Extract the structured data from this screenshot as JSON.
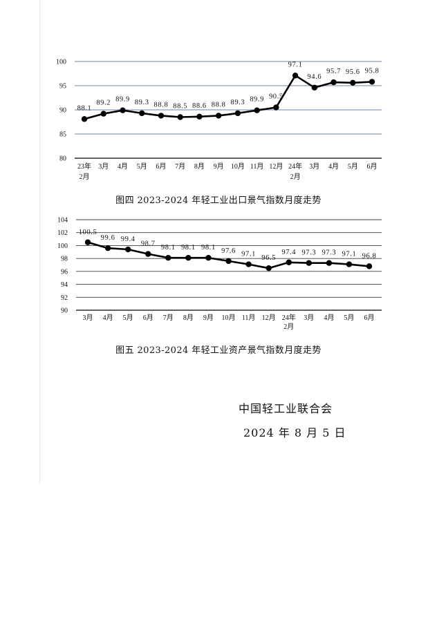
{
  "chart_data": [
    {
      "type": "line",
      "title": "图四 2023-2024 年轻工业出口景气指数月度走势",
      "xlabel": "",
      "ylabel": "",
      "categories": [
        "23年\n2月",
        "3月",
        "4月",
        "5月",
        "6月",
        "7月",
        "8月",
        "9月",
        "10月",
        "11月",
        "12月",
        "24年\n2月",
        "3月",
        "4月",
        "5月",
        "6月"
      ],
      "values": [
        88.1,
        89.2,
        89.9,
        89.3,
        88.8,
        88.5,
        88.6,
        88.8,
        89.3,
        89.9,
        90.5,
        97.1,
        94.6,
        95.7,
        95.6,
        95.8
      ],
      "ylim": [
        80,
        100
      ],
      "yticks": [
        80,
        85,
        90,
        95,
        100
      ],
      "grid": true,
      "data_labels": true,
      "line_color": "#000000",
      "grid_color": "#8a9bb5",
      "axis_color": "#000000"
    },
    {
      "type": "line",
      "title": "图五 2023-2024 年轻工业资产景气指数月度走势",
      "xlabel": "",
      "ylabel": "",
      "categories": [
        "3月",
        "4月",
        "5月",
        "6月",
        "7月",
        "8月",
        "9月",
        "10月",
        "11月",
        "12月",
        "24年\n2月",
        "3月",
        "4月",
        "5月",
        "6月"
      ],
      "values": [
        100.5,
        99.6,
        99.4,
        98.7,
        98.1,
        98.1,
        98.1,
        97.6,
        97.1,
        96.5,
        97.4,
        97.3,
        97.3,
        97.1,
        96.8
      ],
      "ylim": [
        90,
        104
      ],
      "yticks": [
        90,
        92,
        94,
        96,
        98,
        100,
        102,
        104
      ],
      "grid": true,
      "data_labels": true,
      "line_color": "#000000",
      "grid_color": "#3a3a3a",
      "axis_color": "#000000"
    }
  ],
  "footer": {
    "organization": "中国轻工业联合会",
    "date": "2024 年 8 月 5 日"
  }
}
